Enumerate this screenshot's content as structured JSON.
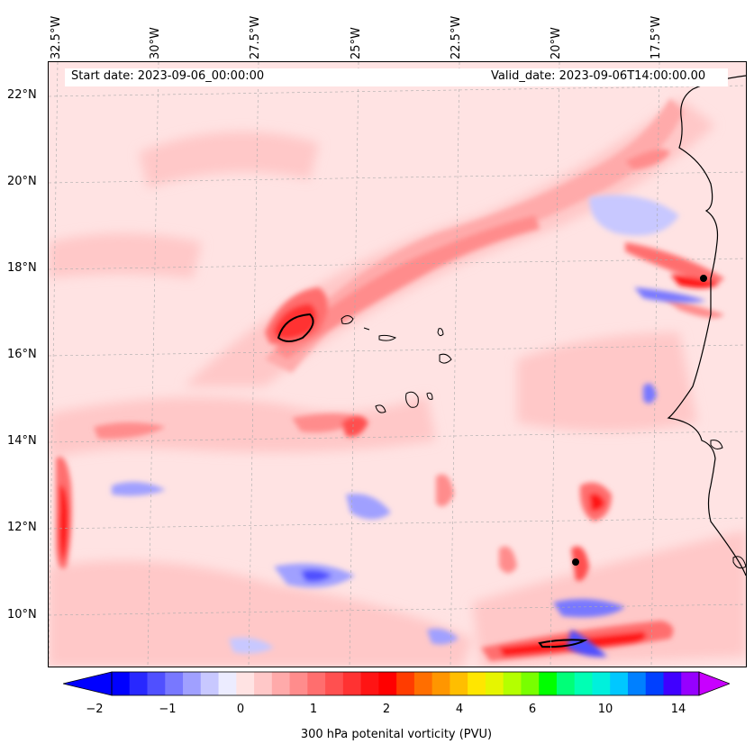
{
  "map": {
    "start_date": "Start date: 2023-09-06_00:00:00",
    "valid_date": "Valid_date: 2023-09-06T14:00:00.00",
    "longitude_labels": [
      "32.5°W",
      "30°W",
      "27.5°W",
      "25°W",
      "22.5°W",
      "20°W",
      "17.5°W"
    ],
    "latitude_labels": [
      "22°N",
      "20°N",
      "18°N",
      "16°N",
      "14°N",
      "12°N",
      "10°N"
    ]
  },
  "colorbar": {
    "label": "300 hPa potenital vorticity (PVU)",
    "ticks": [
      "−2",
      "−1",
      "0",
      "1",
      "2",
      "4",
      "6",
      "10",
      "14"
    ],
    "colors": [
      "#0000ff",
      "#2828ff",
      "#5050ff",
      "#7878ff",
      "#a0a0ff",
      "#c8c8ff",
      "#ececff",
      "#ffe3e3",
      "#ffc8c8",
      "#ffaaaa",
      "#ff8c8c",
      "#ff6e6e",
      "#ff5050",
      "#ff3232",
      "#ff1414",
      "#ff0000",
      "#ff3c00",
      "#ff6e00",
      "#ff9600",
      "#ffbe00",
      "#ffe600",
      "#e6f500",
      "#b4ff00",
      "#78ff00",
      "#00ff00",
      "#00ff78",
      "#00ffb4",
      "#00f0dc",
      "#00c8ff",
      "#0080ff",
      "#0040ff",
      "#4000ff",
      "#9600ff"
    ],
    "under_color": "#0000ff",
    "over_color": "#c800ff"
  }
}
